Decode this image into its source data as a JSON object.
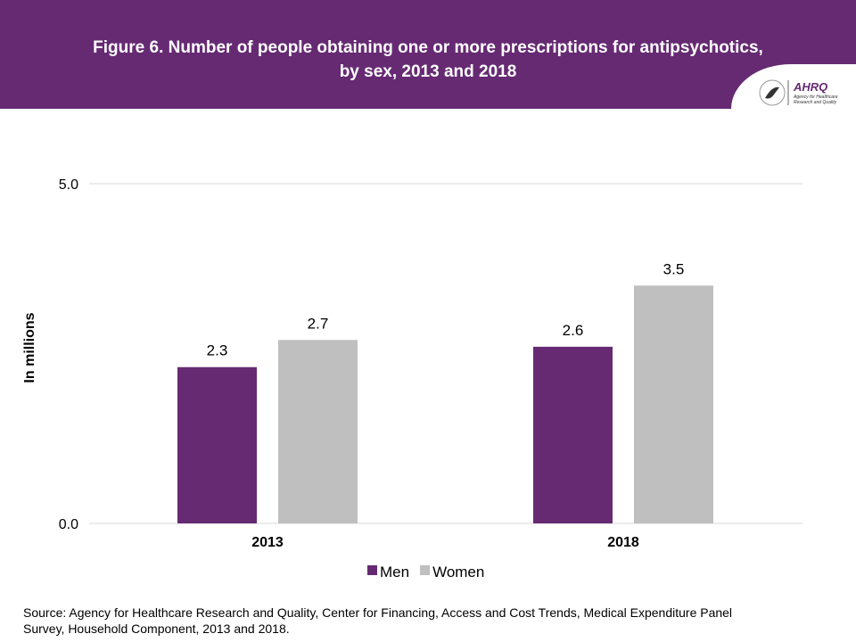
{
  "header": {
    "title": "Figure 6. Number of people obtaining one or more prescriptions for antipsychotics, by sex, 2013 and 2018",
    "logo_text": "AHRQ Agency for Healthcare Research and Quality"
  },
  "chart_data": {
    "type": "bar",
    "title": "Figure 6. Number of people obtaining one or more prescriptions for antipsychotics, by sex, 2013 and 2018",
    "categories": [
      "2013",
      "2018"
    ],
    "series": [
      {
        "name": "Men",
        "values": [
          2.3,
          2.6
        ],
        "color": "#662a73"
      },
      {
        "name": "Women",
        "values": [
          2.7,
          3.5
        ],
        "color": "#bfbfbf"
      }
    ],
    "ylabel": "In millions",
    "xlabel": "",
    "ylim": [
      0,
      5
    ],
    "yticks": [
      "0.0",
      "5.0"
    ],
    "grid": true,
    "legend": "bottom"
  },
  "source": "Source: Agency for Healthcare Research and Quality, Center for Financing, Access and Cost Trends, Medical Expenditure Panel Survey, Household Component, 2013 and 2018."
}
